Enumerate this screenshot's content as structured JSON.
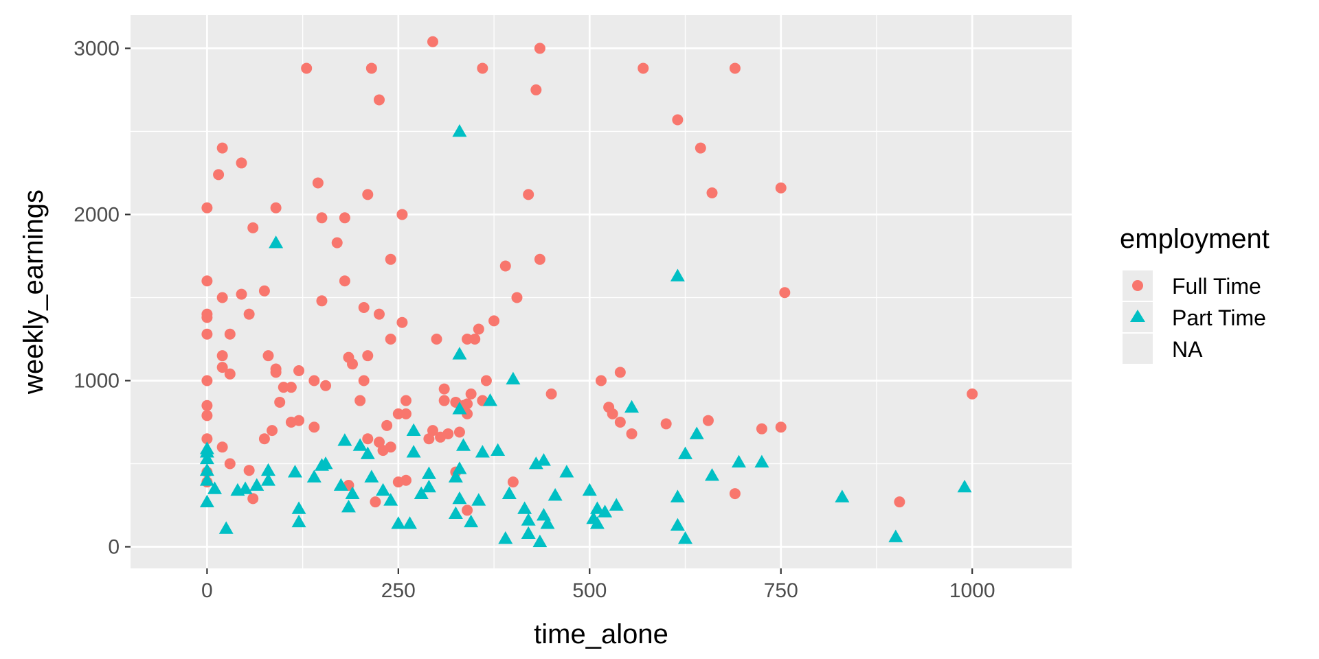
{
  "chart_data": {
    "type": "scatter",
    "title": "",
    "xlabel": "time_alone",
    "ylabel": "weekly_earnings",
    "xlim": [
      -100,
      1130
    ],
    "ylim": [
      -130,
      3200
    ],
    "x_ticks": [
      0,
      250,
      500,
      750,
      1000
    ],
    "y_ticks": [
      0,
      1000,
      2000,
      3000
    ],
    "x_tick_labels": [
      "0",
      "250",
      "500",
      "750",
      "1000"
    ],
    "y_tick_labels": [
      "0",
      "1000",
      "2000",
      "3000"
    ],
    "grid": true,
    "panel_background": "#ebebeb",
    "grid_color": "#ffffff",
    "legend": {
      "title": "employment",
      "placement": "right",
      "entries": [
        {
          "label": "Full Time",
          "color": "#f8766d",
          "shape": "circle"
        },
        {
          "label": "Part Time",
          "color": "#00bfc4",
          "shape": "triangle"
        },
        {
          "label": "NA",
          "color": "",
          "shape": "none"
        }
      ]
    },
    "series": [
      {
        "name": "Full Time",
        "color": "#f8766d",
        "shape": "circle",
        "points": [
          [
            0,
            2040
          ],
          [
            0,
            1600
          ],
          [
            0,
            1400
          ],
          [
            0,
            1380
          ],
          [
            0,
            1280
          ],
          [
            0,
            1000
          ],
          [
            0,
            850
          ],
          [
            0,
            790
          ],
          [
            0,
            650
          ],
          [
            0,
            450
          ],
          [
            0,
            390
          ],
          [
            15,
            2240
          ],
          [
            20,
            2400
          ],
          [
            20,
            1500
          ],
          [
            20,
            1150
          ],
          [
            20,
            1080
          ],
          [
            20,
            600
          ],
          [
            30,
            1280
          ],
          [
            30,
            1040
          ],
          [
            30,
            500
          ],
          [
            45,
            2310
          ],
          [
            45,
            1520
          ],
          [
            55,
            1400
          ],
          [
            55,
            460
          ],
          [
            60,
            1920
          ],
          [
            60,
            290
          ],
          [
            75,
            1540
          ],
          [
            75,
            650
          ],
          [
            80,
            1150
          ],
          [
            90,
            2040
          ],
          [
            90,
            1070
          ],
          [
            90,
            1050
          ],
          [
            85,
            700
          ],
          [
            95,
            870
          ],
          [
            100,
            960
          ],
          [
            110,
            960
          ],
          [
            110,
            750
          ],
          [
            120,
            1060
          ],
          [
            120,
            760
          ],
          [
            130,
            2880
          ],
          [
            140,
            1000
          ],
          [
            140,
            720
          ],
          [
            145,
            2190
          ],
          [
            150,
            1980
          ],
          [
            150,
            1480
          ],
          [
            155,
            970
          ],
          [
            170,
            1830
          ],
          [
            180,
            1980
          ],
          [
            180,
            1600
          ],
          [
            185,
            1140
          ],
          [
            185,
            370
          ],
          [
            190,
            1100
          ],
          [
            200,
            880
          ],
          [
            205,
            1440
          ],
          [
            205,
            1000
          ],
          [
            210,
            2120
          ],
          [
            210,
            1150
          ],
          [
            210,
            650
          ],
          [
            215,
            2880
          ],
          [
            220,
            270
          ],
          [
            225,
            2690
          ],
          [
            225,
            1400
          ],
          [
            225,
            630
          ],
          [
            230,
            580
          ],
          [
            235,
            730
          ],
          [
            240,
            1730
          ],
          [
            240,
            1250
          ],
          [
            240,
            600
          ],
          [
            250,
            800
          ],
          [
            250,
            390
          ],
          [
            255,
            2000
          ],
          [
            255,
            1350
          ],
          [
            260,
            880
          ],
          [
            260,
            800
          ],
          [
            260,
            400
          ],
          [
            295,
            3040
          ],
          [
            290,
            650
          ],
          [
            295,
            700
          ],
          [
            300,
            1250
          ],
          [
            305,
            660
          ],
          [
            310,
            950
          ],
          [
            310,
            880
          ],
          [
            315,
            680
          ],
          [
            325,
            870
          ],
          [
            325,
            450
          ],
          [
            330,
            690
          ],
          [
            335,
            850
          ],
          [
            340,
            1250
          ],
          [
            340,
            860
          ],
          [
            340,
            800
          ],
          [
            340,
            220
          ],
          [
            345,
            920
          ],
          [
            350,
            1250
          ],
          [
            355,
            1310
          ],
          [
            360,
            2880
          ],
          [
            360,
            880
          ],
          [
            365,
            1000
          ],
          [
            375,
            1360
          ],
          [
            390,
            1690
          ],
          [
            400,
            390
          ],
          [
            405,
            1500
          ],
          [
            420,
            2120
          ],
          [
            430,
            2750
          ],
          [
            435,
            3000
          ],
          [
            435,
            1730
          ],
          [
            450,
            920
          ],
          [
            515,
            1000
          ],
          [
            525,
            840
          ],
          [
            530,
            800
          ],
          [
            540,
            1050
          ],
          [
            540,
            750
          ],
          [
            555,
            680
          ],
          [
            570,
            2880
          ],
          [
            600,
            740
          ],
          [
            615,
            2570
          ],
          [
            645,
            2400
          ],
          [
            655,
            760
          ],
          [
            660,
            2130
          ],
          [
            690,
            2880
          ],
          [
            690,
            320
          ],
          [
            725,
            710
          ],
          [
            750,
            2160
          ],
          [
            750,
            720
          ],
          [
            755,
            1530
          ],
          [
            905,
            270
          ],
          [
            1000,
            920
          ]
        ]
      },
      {
        "name": "Part Time",
        "color": "#00bfc4",
        "shape": "triangle",
        "points": [
          [
            0,
            590
          ],
          [
            0,
            570
          ],
          [
            0,
            530
          ],
          [
            0,
            460
          ],
          [
            0,
            400
          ],
          [
            0,
            270
          ],
          [
            10,
            350
          ],
          [
            25,
            110
          ],
          [
            40,
            340
          ],
          [
            50,
            350
          ],
          [
            65,
            370
          ],
          [
            80,
            460
          ],
          [
            80,
            400
          ],
          [
            90,
            1830
          ],
          [
            115,
            450
          ],
          [
            120,
            230
          ],
          [
            120,
            150
          ],
          [
            140,
            420
          ],
          [
            150,
            490
          ],
          [
            155,
            500
          ],
          [
            175,
            370
          ],
          [
            180,
            640
          ],
          [
            185,
            240
          ],
          [
            190,
            320
          ],
          [
            200,
            610
          ],
          [
            210,
            560
          ],
          [
            215,
            420
          ],
          [
            230,
            340
          ],
          [
            240,
            280
          ],
          [
            250,
            140
          ],
          [
            265,
            140
          ],
          [
            270,
            700
          ],
          [
            270,
            570
          ],
          [
            280,
            320
          ],
          [
            290,
            440
          ],
          [
            290,
            360
          ],
          [
            325,
            200
          ],
          [
            325,
            420
          ],
          [
            330,
            470
          ],
          [
            330,
            290
          ],
          [
            330,
            2500
          ],
          [
            330,
            1160
          ],
          [
            330,
            830
          ],
          [
            335,
            610
          ],
          [
            345,
            150
          ],
          [
            355,
            280
          ],
          [
            360,
            570
          ],
          [
            370,
            880
          ],
          [
            380,
            580
          ],
          [
            390,
            50
          ],
          [
            395,
            320
          ],
          [
            400,
            1010
          ],
          [
            415,
            230
          ],
          [
            420,
            80
          ],
          [
            420,
            160
          ],
          [
            430,
            500
          ],
          [
            435,
            30
          ],
          [
            440,
            520
          ],
          [
            440,
            190
          ],
          [
            445,
            140
          ],
          [
            455,
            310
          ],
          [
            470,
            450
          ],
          [
            500,
            340
          ],
          [
            505,
            170
          ],
          [
            510,
            230
          ],
          [
            510,
            140
          ],
          [
            520,
            210
          ],
          [
            535,
            250
          ],
          [
            555,
            840
          ],
          [
            615,
            1630
          ],
          [
            615,
            300
          ],
          [
            615,
            130
          ],
          [
            625,
            560
          ],
          [
            625,
            50
          ],
          [
            640,
            680
          ],
          [
            660,
            430
          ],
          [
            695,
            510
          ],
          [
            725,
            510
          ],
          [
            830,
            300
          ],
          [
            900,
            60
          ],
          [
            990,
            360
          ]
        ]
      }
    ]
  }
}
